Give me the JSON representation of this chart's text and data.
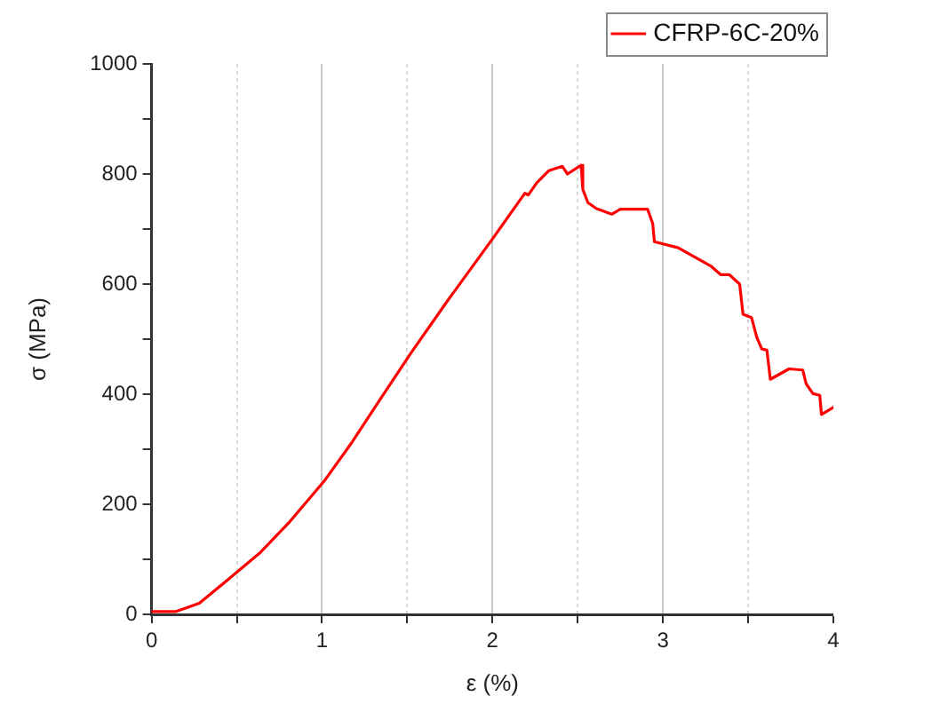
{
  "chart_data": {
    "type": "line",
    "xlabel": "ε (%)",
    "ylabel": "σ (MPa)",
    "xlim": [
      0,
      4
    ],
    "ylim": [
      0,
      1000
    ],
    "xticks": [
      0,
      {
        "value": 0.5,
        "label": null
      },
      1,
      {
        "value": 1.5,
        "label": null
      },
      2,
      {
        "value": 2.5,
        "label": null
      },
      3,
      {
        "value": 3.5,
        "label": null
      },
      4
    ],
    "yticks": [
      0,
      {
        "value": 100,
        "label": null
      },
      200,
      {
        "value": 300,
        "label": null
      },
      400,
      {
        "value": 500,
        "label": null
      },
      600,
      {
        "value": 700,
        "label": null
      },
      800,
      {
        "value": 900,
        "label": null
      },
      1000
    ],
    "grid": "x",
    "legend": "top right",
    "marker": "none",
    "line_style": "solid",
    "series": [
      {
        "name": "CFRP-6C-20%",
        "color": "#ff0000",
        "x": [
          0,
          0.14,
          0.28,
          0.46,
          0.64,
          0.81,
          1.01,
          1.17,
          1.34,
          1.52,
          1.73,
          2.0,
          2.19,
          2.21,
          2.26,
          2.33,
          2.41,
          2.44,
          2.52,
          2.53,
          2.56,
          2.61,
          2.7,
          2.75,
          2.91,
          2.94,
          2.95,
          3.09,
          3.28,
          3.34,
          3.39,
          3.45,
          3.47,
          3.52,
          3.55,
          3.58,
          3.61,
          3.63,
          3.74,
          3.82,
          3.84,
          3.88,
          3.92,
          3.93,
          4.0
        ],
        "values": [
          5,
          5,
          20,
          66,
          113,
          168,
          241,
          310,
          390,
          474,
          567,
          682,
          765,
          762,
          784,
          806,
          814,
          800,
          816,
          772,
          748,
          737,
          727,
          736,
          736,
          710,
          677,
          666,
          633,
          617,
          617,
          600,
          545,
          539,
          504,
          482,
          480,
          427,
          446,
          444,
          419,
          401,
          398,
          363,
          376
        ]
      }
    ]
  }
}
